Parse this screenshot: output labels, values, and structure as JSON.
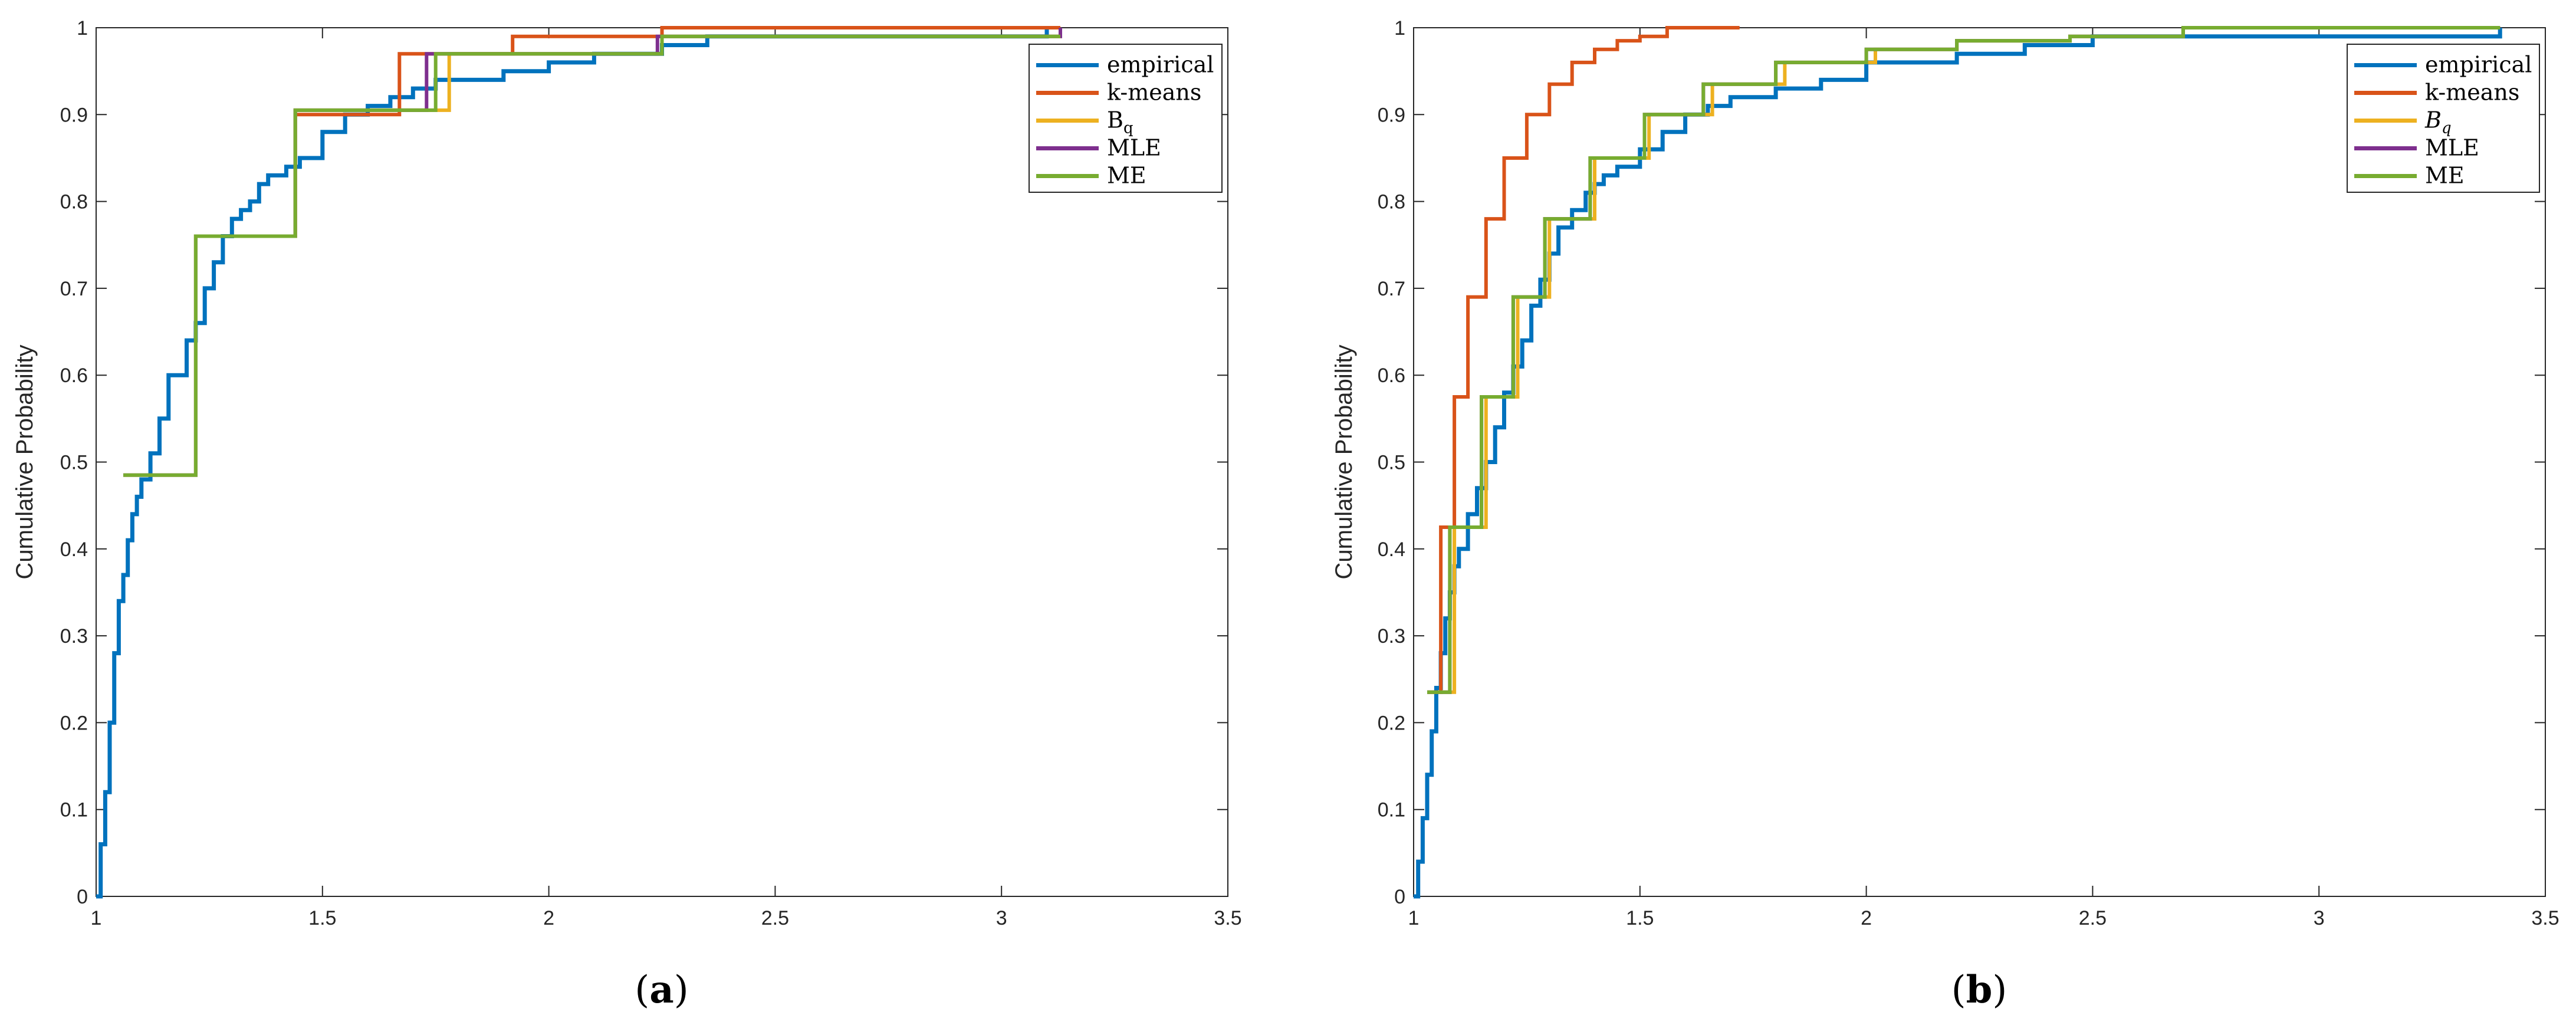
{
  "chart_data": [
    {
      "type": "line",
      "panel_label": "a",
      "ylabel": "Cumulative Probability",
      "xlim": [
        1,
        3.5
      ],
      "ylim": [
        0,
        1
      ],
      "xticks": [
        1,
        1.5,
        2,
        2.5,
        3,
        3.5
      ],
      "xtick_labels": [
        "1",
        "1.5",
        "2",
        "2.5",
        "3",
        "3.5"
      ],
      "yticks": [
        0,
        0.1,
        0.2,
        0.3,
        0.4,
        0.5,
        0.6,
        0.7,
        0.8,
        0.9,
        1
      ],
      "ytick_labels": [
        "0",
        "0.1",
        "0.2",
        "0.3",
        "0.4",
        "0.5",
        "0.6",
        "0.7",
        "0.8",
        "0.9",
        "1"
      ],
      "legend_position": "top-right",
      "series": [
        {
          "name": "empirical",
          "label": "empirical",
          "color": "#0072BD",
          "style": "empirical",
          "x": [
            1.0,
            1.01,
            1.02,
            1.03,
            1.04,
            1.05,
            1.06,
            1.07,
            1.08,
            1.09,
            1.1,
            1.12,
            1.14,
            1.16,
            1.18,
            1.2,
            1.22,
            1.24,
            1.26,
            1.28,
            1.3,
            1.32,
            1.34,
            1.36,
            1.38,
            1.4,
            1.42,
            1.45,
            1.5,
            1.55,
            1.6,
            1.65,
            1.7,
            1.75,
            1.8,
            1.9,
            2.0,
            2.1,
            2.2,
            2.25,
            2.35,
            3.08,
            3.1
          ],
          "y": [
            0.0,
            0.06,
            0.12,
            0.2,
            0.28,
            0.34,
            0.37,
            0.41,
            0.44,
            0.46,
            0.48,
            0.51,
            0.55,
            0.6,
            0.6,
            0.64,
            0.66,
            0.7,
            0.73,
            0.76,
            0.78,
            0.79,
            0.8,
            0.82,
            0.83,
            0.83,
            0.84,
            0.85,
            0.88,
            0.9,
            0.91,
            0.92,
            0.93,
            0.94,
            0.94,
            0.95,
            0.96,
            0.97,
            0.97,
            0.98,
            0.99,
            0.99,
            1.0
          ]
        },
        {
          "name": "k-means",
          "label": "k-means",
          "color": "#D95319",
          "style": "step",
          "x": [
            1.23,
            1.44,
            1.67,
            1.92,
            2.25,
            3.13
          ],
          "y": [
            0.76,
            0.9,
            0.97,
            0.99,
            1.0,
            1.0
          ]
        },
        {
          "name": "Bq",
          "label": "B",
          "sub": "q",
          "italic": false,
          "color": "#EDB120",
          "style": "step",
          "x": [
            1.06,
            1.22,
            1.44,
            1.78,
            2.25,
            3.13
          ],
          "y": [
            0.485,
            0.76,
            0.905,
            0.97,
            0.99,
            1.0
          ]
        },
        {
          "name": "MLE",
          "label": "MLE",
          "color": "#7E2F8E",
          "style": "step",
          "x": [
            1.06,
            1.22,
            1.44,
            1.73,
            2.24,
            3.13
          ],
          "y": [
            0.485,
            0.76,
            0.905,
            0.97,
            0.99,
            1.0
          ]
        },
        {
          "name": "ME",
          "label": "ME",
          "color": "#77AC30",
          "style": "step",
          "x": [
            1.06,
            1.22,
            1.44,
            1.75,
            2.25,
            3.13
          ],
          "y": [
            0.485,
            0.76,
            0.905,
            0.97,
            0.99,
            0.99
          ]
        }
      ]
    },
    {
      "type": "line",
      "panel_label": "b",
      "ylabel": "Cumulative Probability",
      "xlim": [
        1,
        3.5
      ],
      "ylim": [
        0,
        1
      ],
      "xticks": [
        1,
        1.5,
        2,
        2.5,
        3,
        3.5
      ],
      "xtick_labels": [
        "1",
        "1.5",
        "2",
        "2.5",
        "3",
        "3.5"
      ],
      "yticks": [
        0,
        0.1,
        0.2,
        0.3,
        0.4,
        0.5,
        0.6,
        0.7,
        0.8,
        0.9,
        1
      ],
      "ytick_labels": [
        "0",
        "0.1",
        "0.2",
        "0.3",
        "0.4",
        "0.5",
        "0.6",
        "0.7",
        "0.8",
        "0.9",
        "1"
      ],
      "legend_position": "top-right",
      "series": [
        {
          "name": "empirical",
          "label": "empirical",
          "color": "#0072BD",
          "style": "empirical",
          "x": [
            1.0,
            1.01,
            1.02,
            1.03,
            1.04,
            1.05,
            1.06,
            1.07,
            1.08,
            1.09,
            1.1,
            1.12,
            1.14,
            1.16,
            1.18,
            1.2,
            1.22,
            1.24,
            1.26,
            1.28,
            1.3,
            1.32,
            1.35,
            1.38,
            1.4,
            1.42,
            1.45,
            1.5,
            1.55,
            1.6,
            1.65,
            1.7,
            1.8,
            1.9,
            2.0,
            2.2,
            2.35,
            2.5,
            3.08,
            3.4
          ],
          "y": [
            0.0,
            0.04,
            0.09,
            0.14,
            0.19,
            0.24,
            0.28,
            0.32,
            0.35,
            0.38,
            0.4,
            0.44,
            0.47,
            0.5,
            0.54,
            0.58,
            0.61,
            0.64,
            0.68,
            0.71,
            0.74,
            0.77,
            0.79,
            0.81,
            0.82,
            0.83,
            0.84,
            0.86,
            0.88,
            0.9,
            0.91,
            0.92,
            0.93,
            0.94,
            0.96,
            0.97,
            0.98,
            0.99,
            0.99,
            1.0
          ]
        },
        {
          "name": "k-means",
          "label": "k-means",
          "color": "#D95319",
          "style": "step",
          "x": [
            1.03,
            1.06,
            1.09,
            1.12,
            1.16,
            1.2,
            1.25,
            1.3,
            1.35,
            1.4,
            1.45,
            1.5,
            1.56,
            1.72
          ],
          "y": [
            0.235,
            0.425,
            0.575,
            0.69,
            0.78,
            0.85,
            0.9,
            0.935,
            0.96,
            0.975,
            0.985,
            0.99,
            1.0,
            1.0
          ]
        },
        {
          "name": "Bq",
          "label": "B",
          "sub": "q",
          "italic": true,
          "color": "#EDB120",
          "style": "step",
          "x": [
            1.03,
            1.09,
            1.16,
            1.23,
            1.3,
            1.4,
            1.52,
            1.66,
            1.82,
            2.02,
            2.2,
            2.45,
            2.7,
            3.4
          ],
          "y": [
            0.235,
            0.425,
            0.575,
            0.69,
            0.78,
            0.85,
            0.9,
            0.935,
            0.96,
            0.975,
            0.985,
            0.99,
            1.0,
            1.0
          ]
        },
        {
          "name": "MLE",
          "label": "MLE",
          "color": "#7E2F8E",
          "style": "step",
          "x": [
            1.03,
            1.08,
            1.15,
            1.22,
            1.29,
            1.39,
            1.51,
            1.64,
            1.8,
            2.0,
            2.2,
            2.45,
            2.7,
            3.4
          ],
          "y": [
            0.235,
            0.425,
            0.575,
            0.69,
            0.78,
            0.85,
            0.9,
            0.935,
            0.96,
            0.975,
            0.985,
            0.99,
            1.0,
            1.0
          ]
        },
        {
          "name": "ME",
          "label": "ME",
          "color": "#77AC30",
          "style": "step",
          "x": [
            1.03,
            1.08,
            1.15,
            1.22,
            1.29,
            1.39,
            1.51,
            1.64,
            1.8,
            2.0,
            2.2,
            2.45,
            2.7,
            3.4
          ],
          "y": [
            0.235,
            0.425,
            0.575,
            0.69,
            0.78,
            0.85,
            0.9,
            0.935,
            0.96,
            0.975,
            0.985,
            0.99,
            1.0,
            1.0
          ]
        }
      ]
    }
  ]
}
